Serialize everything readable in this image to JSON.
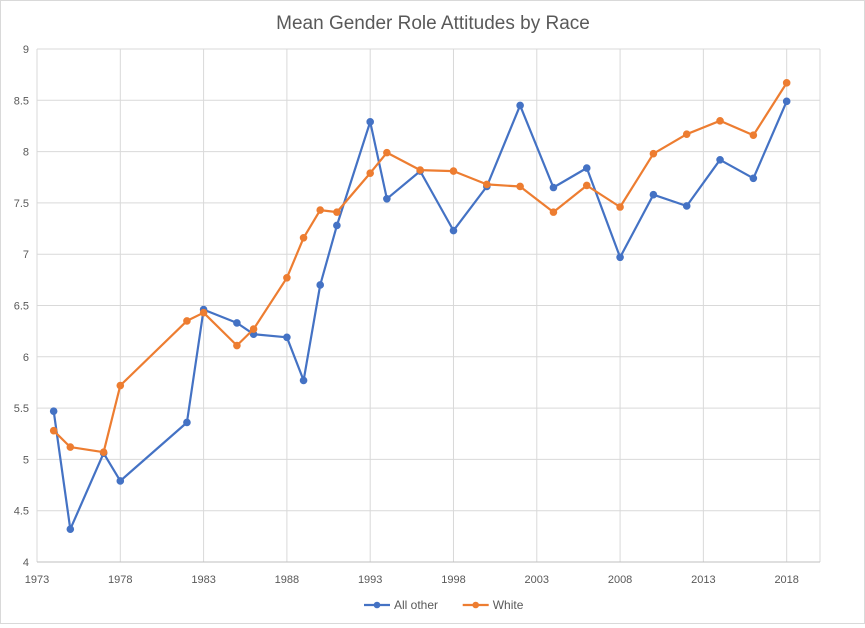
{
  "chart_data": {
    "type": "line",
    "title": "Mean Gender Role Attitudes by Race",
    "xlabel": "",
    "ylabel": "",
    "xlim": [
      1973,
      2020
    ],
    "ylim": [
      4,
      9
    ],
    "x_ticks": [
      "1973",
      "1978",
      "1983",
      "1988",
      "1993",
      "1998",
      "2003",
      "2008",
      "2013",
      "2018"
    ],
    "y_ticks": [
      "4",
      "4.5",
      "5",
      "5.5",
      "6",
      "6.5",
      "7",
      "7.5",
      "8",
      "8.5",
      "9"
    ],
    "grid": true,
    "legend_position": "bottom",
    "series": [
      {
        "name": "All other",
        "color": "#4472c4",
        "points": [
          {
            "x": 1974,
            "y": 5.47
          },
          {
            "x": 1975,
            "y": 4.32
          },
          {
            "x": 1977,
            "y": 5.06
          },
          {
            "x": 1978,
            "y": 4.79
          },
          {
            "x": 1982,
            "y": 5.36
          },
          {
            "x": 1983,
            "y": 6.46
          },
          {
            "x": 1985,
            "y": 6.33
          },
          {
            "x": 1986,
            "y": 6.22
          },
          {
            "x": 1988,
            "y": 6.19
          },
          {
            "x": 1989,
            "y": 5.77
          },
          {
            "x": 1990,
            "y": 6.7
          },
          {
            "x": 1991,
            "y": 7.28
          },
          {
            "x": 1993,
            "y": 8.29
          },
          {
            "x": 1994,
            "y": 7.54
          },
          {
            "x": 1996,
            "y": 7.81
          },
          {
            "x": 1998,
            "y": 7.23
          },
          {
            "x": 2000,
            "y": 7.66
          },
          {
            "x": 2002,
            "y": 8.45
          },
          {
            "x": 2004,
            "y": 7.65
          },
          {
            "x": 2006,
            "y": 7.84
          },
          {
            "x": 2008,
            "y": 6.97
          },
          {
            "x": 2010,
            "y": 7.58
          },
          {
            "x": 2012,
            "y": 7.47
          },
          {
            "x": 2014,
            "y": 7.92
          },
          {
            "x": 2016,
            "y": 7.74
          },
          {
            "x": 2018,
            "y": 8.49
          }
        ]
      },
      {
        "name": "White",
        "color": "#ed7d31",
        "points": [
          {
            "x": 1974,
            "y": 5.28
          },
          {
            "x": 1975,
            "y": 5.12
          },
          {
            "x": 1977,
            "y": 5.07
          },
          {
            "x": 1978,
            "y": 5.72
          },
          {
            "x": 1982,
            "y": 6.35
          },
          {
            "x": 1983,
            "y": 6.43
          },
          {
            "x": 1985,
            "y": 6.11
          },
          {
            "x": 1986,
            "y": 6.27
          },
          {
            "x": 1988,
            "y": 6.77
          },
          {
            "x": 1989,
            "y": 7.16
          },
          {
            "x": 1990,
            "y": 7.43
          },
          {
            "x": 1991,
            "y": 7.41
          },
          {
            "x": 1993,
            "y": 7.79
          },
          {
            "x": 1994,
            "y": 7.99
          },
          {
            "x": 1996,
            "y": 7.82
          },
          {
            "x": 1998,
            "y": 7.81
          },
          {
            "x": 2000,
            "y": 7.68
          },
          {
            "x": 2002,
            "y": 7.66
          },
          {
            "x": 2004,
            "y": 7.41
          },
          {
            "x": 2006,
            "y": 7.67
          },
          {
            "x": 2008,
            "y": 7.46
          },
          {
            "x": 2010,
            "y": 7.98
          },
          {
            "x": 2012,
            "y": 8.17
          },
          {
            "x": 2014,
            "y": 8.3
          },
          {
            "x": 2016,
            "y": 8.16
          },
          {
            "x": 2018,
            "y": 8.67
          }
        ]
      }
    ]
  }
}
